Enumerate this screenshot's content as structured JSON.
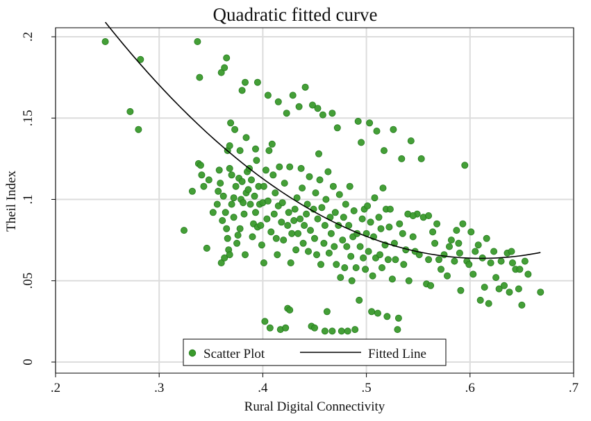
{
  "chart_data": {
    "type": "scatter",
    "title": "Quadratic fitted curve",
    "xlabel": "Rural Digital Connectivity",
    "ylabel": "Theil Index",
    "xlim": [
      0.2,
      0.7
    ],
    "ylim": [
      0,
      0.2
    ],
    "x_ticks": [
      0.2,
      0.3,
      0.4,
      0.5,
      0.6,
      0.7
    ],
    "x_tick_labels": [
      ".2",
      ".3",
      ".4",
      ".5",
      ".6",
      ".7"
    ],
    "y_ticks": [
      0,
      0.05,
      0.1,
      0.15,
      0.2
    ],
    "y_tick_labels": [
      "0",
      ".05",
      ".1",
      ".15",
      ".2"
    ],
    "grid": true,
    "legend_position": "bottom-center",
    "colors": {
      "points": "#3a9a2c",
      "point_edge": "#237a1c",
      "line": "#000000",
      "grid": "#dcdcdc",
      "frame": "#000000"
    },
    "series": [
      {
        "name": "Scatter Plot",
        "kind": "scatter",
        "points": [
          [
            0.248,
            0.197
          ],
          [
            0.272,
            0.154
          ],
          [
            0.28,
            0.143
          ],
          [
            0.282,
            0.186
          ],
          [
            0.324,
            0.081
          ],
          [
            0.332,
            0.105
          ],
          [
            0.337,
            0.197
          ],
          [
            0.338,
            0.122
          ],
          [
            0.339,
            0.175
          ],
          [
            0.34,
            0.121
          ],
          [
            0.341,
            0.115
          ],
          [
            0.343,
            0.108
          ],
          [
            0.346,
            0.07
          ],
          [
            0.348,
            0.112
          ],
          [
            0.352,
            0.092
          ],
          [
            0.356,
            0.097
          ],
          [
            0.357,
            0.105
          ],
          [
            0.358,
            0.118
          ],
          [
            0.359,
            0.11
          ],
          [
            0.36,
            0.061
          ],
          [
            0.36,
            0.178
          ],
          [
            0.361,
            0.087
          ],
          [
            0.362,
            0.102
          ],
          [
            0.363,
            0.181
          ],
          [
            0.363,
            0.064
          ],
          [
            0.364,
            0.092
          ],
          [
            0.365,
            0.187
          ],
          [
            0.365,
            0.082
          ],
          [
            0.366,
            0.13
          ],
          [
            0.366,
            0.076
          ],
          [
            0.367,
            0.069
          ],
          [
            0.368,
            0.133
          ],
          [
            0.368,
            0.119
          ],
          [
            0.368,
            0.066
          ],
          [
            0.369,
            0.147
          ],
          [
            0.37,
            0.115
          ],
          [
            0.37,
            0.097
          ],
          [
            0.372,
            0.101
          ],
          [
            0.372,
            0.089
          ],
          [
            0.373,
            0.143
          ],
          [
            0.374,
            0.108
          ],
          [
            0.375,
            0.073
          ],
          [
            0.376,
            0.078
          ],
          [
            0.377,
            0.113
          ],
          [
            0.378,
            0.13
          ],
          [
            0.378,
            0.082
          ],
          [
            0.379,
            0.1
          ],
          [
            0.38,
            0.167
          ],
          [
            0.38,
            0.111
          ],
          [
            0.381,
            0.098
          ],
          [
            0.382,
            0.091
          ],
          [
            0.383,
            0.172
          ],
          [
            0.383,
            0.066
          ],
          [
            0.384,
            0.104
          ],
          [
            0.384,
            0.138
          ],
          [
            0.385,
            0.117
          ],
          [
            0.386,
            0.106
          ],
          [
            0.387,
            0.119
          ],
          [
            0.388,
            0.097
          ],
          [
            0.389,
            0.112
          ],
          [
            0.39,
            0.077
          ],
          [
            0.391,
            0.085
          ],
          [
            0.392,
            0.102
          ],
          [
            0.393,
            0.131
          ],
          [
            0.393,
            0.092
          ],
          [
            0.394,
            0.124
          ],
          [
            0.395,
            0.172
          ],
          [
            0.395,
            0.083
          ],
          [
            0.396,
            0.108
          ],
          [
            0.397,
            0.097
          ],
          [
            0.398,
            0.084
          ],
          [
            0.399,
            0.072
          ],
          [
            0.4,
            0.098
          ],
          [
            0.401,
            0.061
          ],
          [
            0.401,
            0.108
          ],
          [
            0.402,
            0.025
          ],
          [
            0.403,
            0.118
          ],
          [
            0.404,
            0.088
          ],
          [
            0.405,
            0.164
          ],
          [
            0.405,
            0.099
          ],
          [
            0.406,
            0.13
          ],
          [
            0.407,
            0.021
          ],
          [
            0.408,
            0.08
          ],
          [
            0.409,
            0.134
          ],
          [
            0.41,
            0.115
          ],
          [
            0.411,
            0.091
          ],
          [
            0.412,
            0.104
          ],
          [
            0.413,
            0.076
          ],
          [
            0.414,
            0.066
          ],
          [
            0.415,
            0.16
          ],
          [
            0.415,
            0.096
          ],
          [
            0.416,
            0.12
          ],
          [
            0.417,
            0.02
          ],
          [
            0.418,
            0.086
          ],
          [
            0.419,
            0.098
          ],
          [
            0.42,
            0.075
          ],
          [
            0.421,
            0.11
          ],
          [
            0.422,
            0.021
          ],
          [
            0.423,
            0.153
          ],
          [
            0.424,
            0.084
          ],
          [
            0.424,
            0.033
          ],
          [
            0.425,
            0.092
          ],
          [
            0.426,
            0.032
          ],
          [
            0.426,
            0.12
          ],
          [
            0.427,
            0.061
          ],
          [
            0.428,
            0.079
          ],
          [
            0.429,
            0.164
          ],
          [
            0.43,
            0.087
          ],
          [
            0.431,
            0.094
          ],
          [
            0.432,
            0.069
          ],
          [
            0.433,
            0.101
          ],
          [
            0.434,
            0.079
          ],
          [
            0.435,
            0.157
          ],
          [
            0.436,
            0.088
          ],
          [
            0.437,
            0.119
          ],
          [
            0.438,
            0.107
          ],
          [
            0.439,
            0.073
          ],
          [
            0.44,
            0.084
          ],
          [
            0.441,
            0.169
          ],
          [
            0.442,
            0.091
          ],
          [
            0.443,
            0.097
          ],
          [
            0.444,
            0.068
          ],
          [
            0.445,
            0.114
          ],
          [
            0.446,
            0.081
          ],
          [
            0.447,
            0.022
          ],
          [
            0.448,
            0.158
          ],
          [
            0.449,
            0.094
          ],
          [
            0.45,
            0.076
          ],
          [
            0.45,
            0.021
          ],
          [
            0.451,
            0.104
          ],
          [
            0.452,
            0.066
          ],
          [
            0.453,
            0.088
          ],
          [
            0.453,
            0.156
          ],
          [
            0.454,
            0.128
          ],
          [
            0.455,
            0.112
          ],
          [
            0.456,
            0.06
          ],
          [
            0.457,
            0.095
          ],
          [
            0.458,
            0.152
          ],
          [
            0.459,
            0.073
          ],
          [
            0.46,
            0.084
          ],
          [
            0.46,
            0.019
          ],
          [
            0.461,
            0.1
          ],
          [
            0.462,
            0.031
          ],
          [
            0.463,
            0.117
          ],
          [
            0.464,
            0.067
          ],
          [
            0.465,
            0.089
          ],
          [
            0.466,
            0.079
          ],
          [
            0.467,
            0.153
          ],
          [
            0.467,
            0.019
          ],
          [
            0.468,
            0.108
          ],
          [
            0.469,
            0.071
          ],
          [
            0.47,
            0.092
          ],
          [
            0.471,
            0.06
          ],
          [
            0.472,
            0.144
          ],
          [
            0.473,
            0.084
          ],
          [
            0.474,
            0.103
          ],
          [
            0.475,
            0.052
          ],
          [
            0.476,
            0.019
          ],
          [
            0.477,
            0.075
          ],
          [
            0.478,
            0.089
          ],
          [
            0.479,
            0.058
          ],
          [
            0.48,
            0.097
          ],
          [
            0.481,
            0.071
          ],
          [
            0.482,
            0.019
          ],
          [
            0.483,
            0.084
          ],
          [
            0.484,
            0.108
          ],
          [
            0.485,
            0.065
          ],
          [
            0.486,
            0.05
          ],
          [
            0.487,
            0.077
          ],
          [
            0.488,
            0.093
          ],
          [
            0.489,
            0.02
          ],
          [
            0.49,
            0.058
          ],
          [
            0.491,
            0.079
          ],
          [
            0.492,
            0.148
          ],
          [
            0.493,
            0.038
          ],
          [
            0.494,
            0.071
          ],
          [
            0.495,
            0.135
          ],
          [
            0.496,
            0.088
          ],
          [
            0.497,
            0.064
          ],
          [
            0.498,
            0.094
          ],
          [
            0.499,
            0.057
          ],
          [
            0.5,
            0.079
          ],
          [
            0.501,
            0.096
          ],
          [
            0.502,
            0.068
          ],
          [
            0.503,
            0.147
          ],
          [
            0.504,
            0.086
          ],
          [
            0.505,
            0.031
          ],
          [
            0.506,
            0.053
          ],
          [
            0.507,
            0.077
          ],
          [
            0.508,
            0.101
          ],
          [
            0.509,
            0.064
          ],
          [
            0.51,
            0.142
          ],
          [
            0.511,
            0.03
          ],
          [
            0.512,
            0.089
          ],
          [
            0.513,
            0.066
          ],
          [
            0.514,
            0.082
          ],
          [
            0.515,
            0.058
          ],
          [
            0.516,
            0.107
          ],
          [
            0.517,
            0.13
          ],
          [
            0.518,
            0.072
          ],
          [
            0.519,
            0.094
          ],
          [
            0.52,
            0.028
          ],
          [
            0.521,
            0.063
          ],
          [
            0.522,
            0.083
          ],
          [
            0.523,
            0.094
          ],
          [
            0.525,
            0.051
          ],
          [
            0.526,
            0.143
          ],
          [
            0.527,
            0.073
          ],
          [
            0.528,
            0.063
          ],
          [
            0.53,
            0.02
          ],
          [
            0.531,
            0.027
          ],
          [
            0.532,
            0.085
          ],
          [
            0.534,
            0.125
          ],
          [
            0.535,
            0.079
          ],
          [
            0.536,
            0.06
          ],
          [
            0.538,
            0.069
          ],
          [
            0.54,
            0.091
          ],
          [
            0.541,
            0.05
          ],
          [
            0.543,
            0.136
          ],
          [
            0.545,
            0.077
          ],
          [
            0.547,
            0.068
          ],
          [
            0.549,
            0.091
          ],
          [
            0.551,
            0.066
          ],
          [
            0.553,
            0.125
          ],
          [
            0.555,
            0.089
          ],
          [
            0.558,
            0.048
          ],
          [
            0.56,
            0.063
          ],
          [
            0.562,
            0.047
          ],
          [
            0.564,
            0.08
          ],
          [
            0.566,
            0.073
          ],
          [
            0.568,
            0.085
          ],
          [
            0.57,
            0.063
          ],
          [
            0.572,
            0.057
          ],
          [
            0.575,
            0.066
          ],
          [
            0.578,
            0.053
          ],
          [
            0.58,
            0.071
          ],
          [
            0.582,
            0.075
          ],
          [
            0.585,
            0.062
          ],
          [
            0.587,
            0.081
          ],
          [
            0.589,
            0.073
          ],
          [
            0.591,
            0.044
          ],
          [
            0.593,
            0.085
          ],
          [
            0.595,
            0.121
          ],
          [
            0.597,
            0.062
          ],
          [
            0.599,
            0.06
          ],
          [
            0.601,
            0.08
          ],
          [
            0.603,
            0.054
          ],
          [
            0.605,
            0.068
          ],
          [
            0.608,
            0.072
          ],
          [
            0.61,
            0.038
          ],
          [
            0.612,
            0.064
          ],
          [
            0.614,
            0.046
          ],
          [
            0.616,
            0.076
          ],
          [
            0.618,
            0.036
          ],
          [
            0.62,
            0.061
          ],
          [
            0.623,
            0.068
          ],
          [
            0.625,
            0.052
          ],
          [
            0.628,
            0.045
          ],
          [
            0.63,
            0.062
          ],
          [
            0.633,
            0.047
          ],
          [
            0.636,
            0.067
          ],
          [
            0.638,
            0.043
          ],
          [
            0.641,
            0.061
          ],
          [
            0.644,
            0.057
          ],
          [
            0.647,
            0.045
          ],
          [
            0.65,
            0.035
          ],
          [
            0.653,
            0.062
          ],
          [
            0.656,
            0.054
          ],
          [
            0.668,
            0.043
          ],
          [
            0.648,
            0.057
          ],
          [
            0.64,
            0.068
          ],
          [
            0.59,
            0.067
          ],
          [
            0.56,
            0.09
          ],
          [
            0.545,
            0.09
          ]
        ]
      },
      {
        "name": "Fitted Line",
        "kind": "line",
        "domain": [
          0.248,
          0.668
        ],
        "quadratic": {
          "a": 1.1037,
          "b": -1.3481,
          "c": 0.4754
        }
      }
    ]
  }
}
